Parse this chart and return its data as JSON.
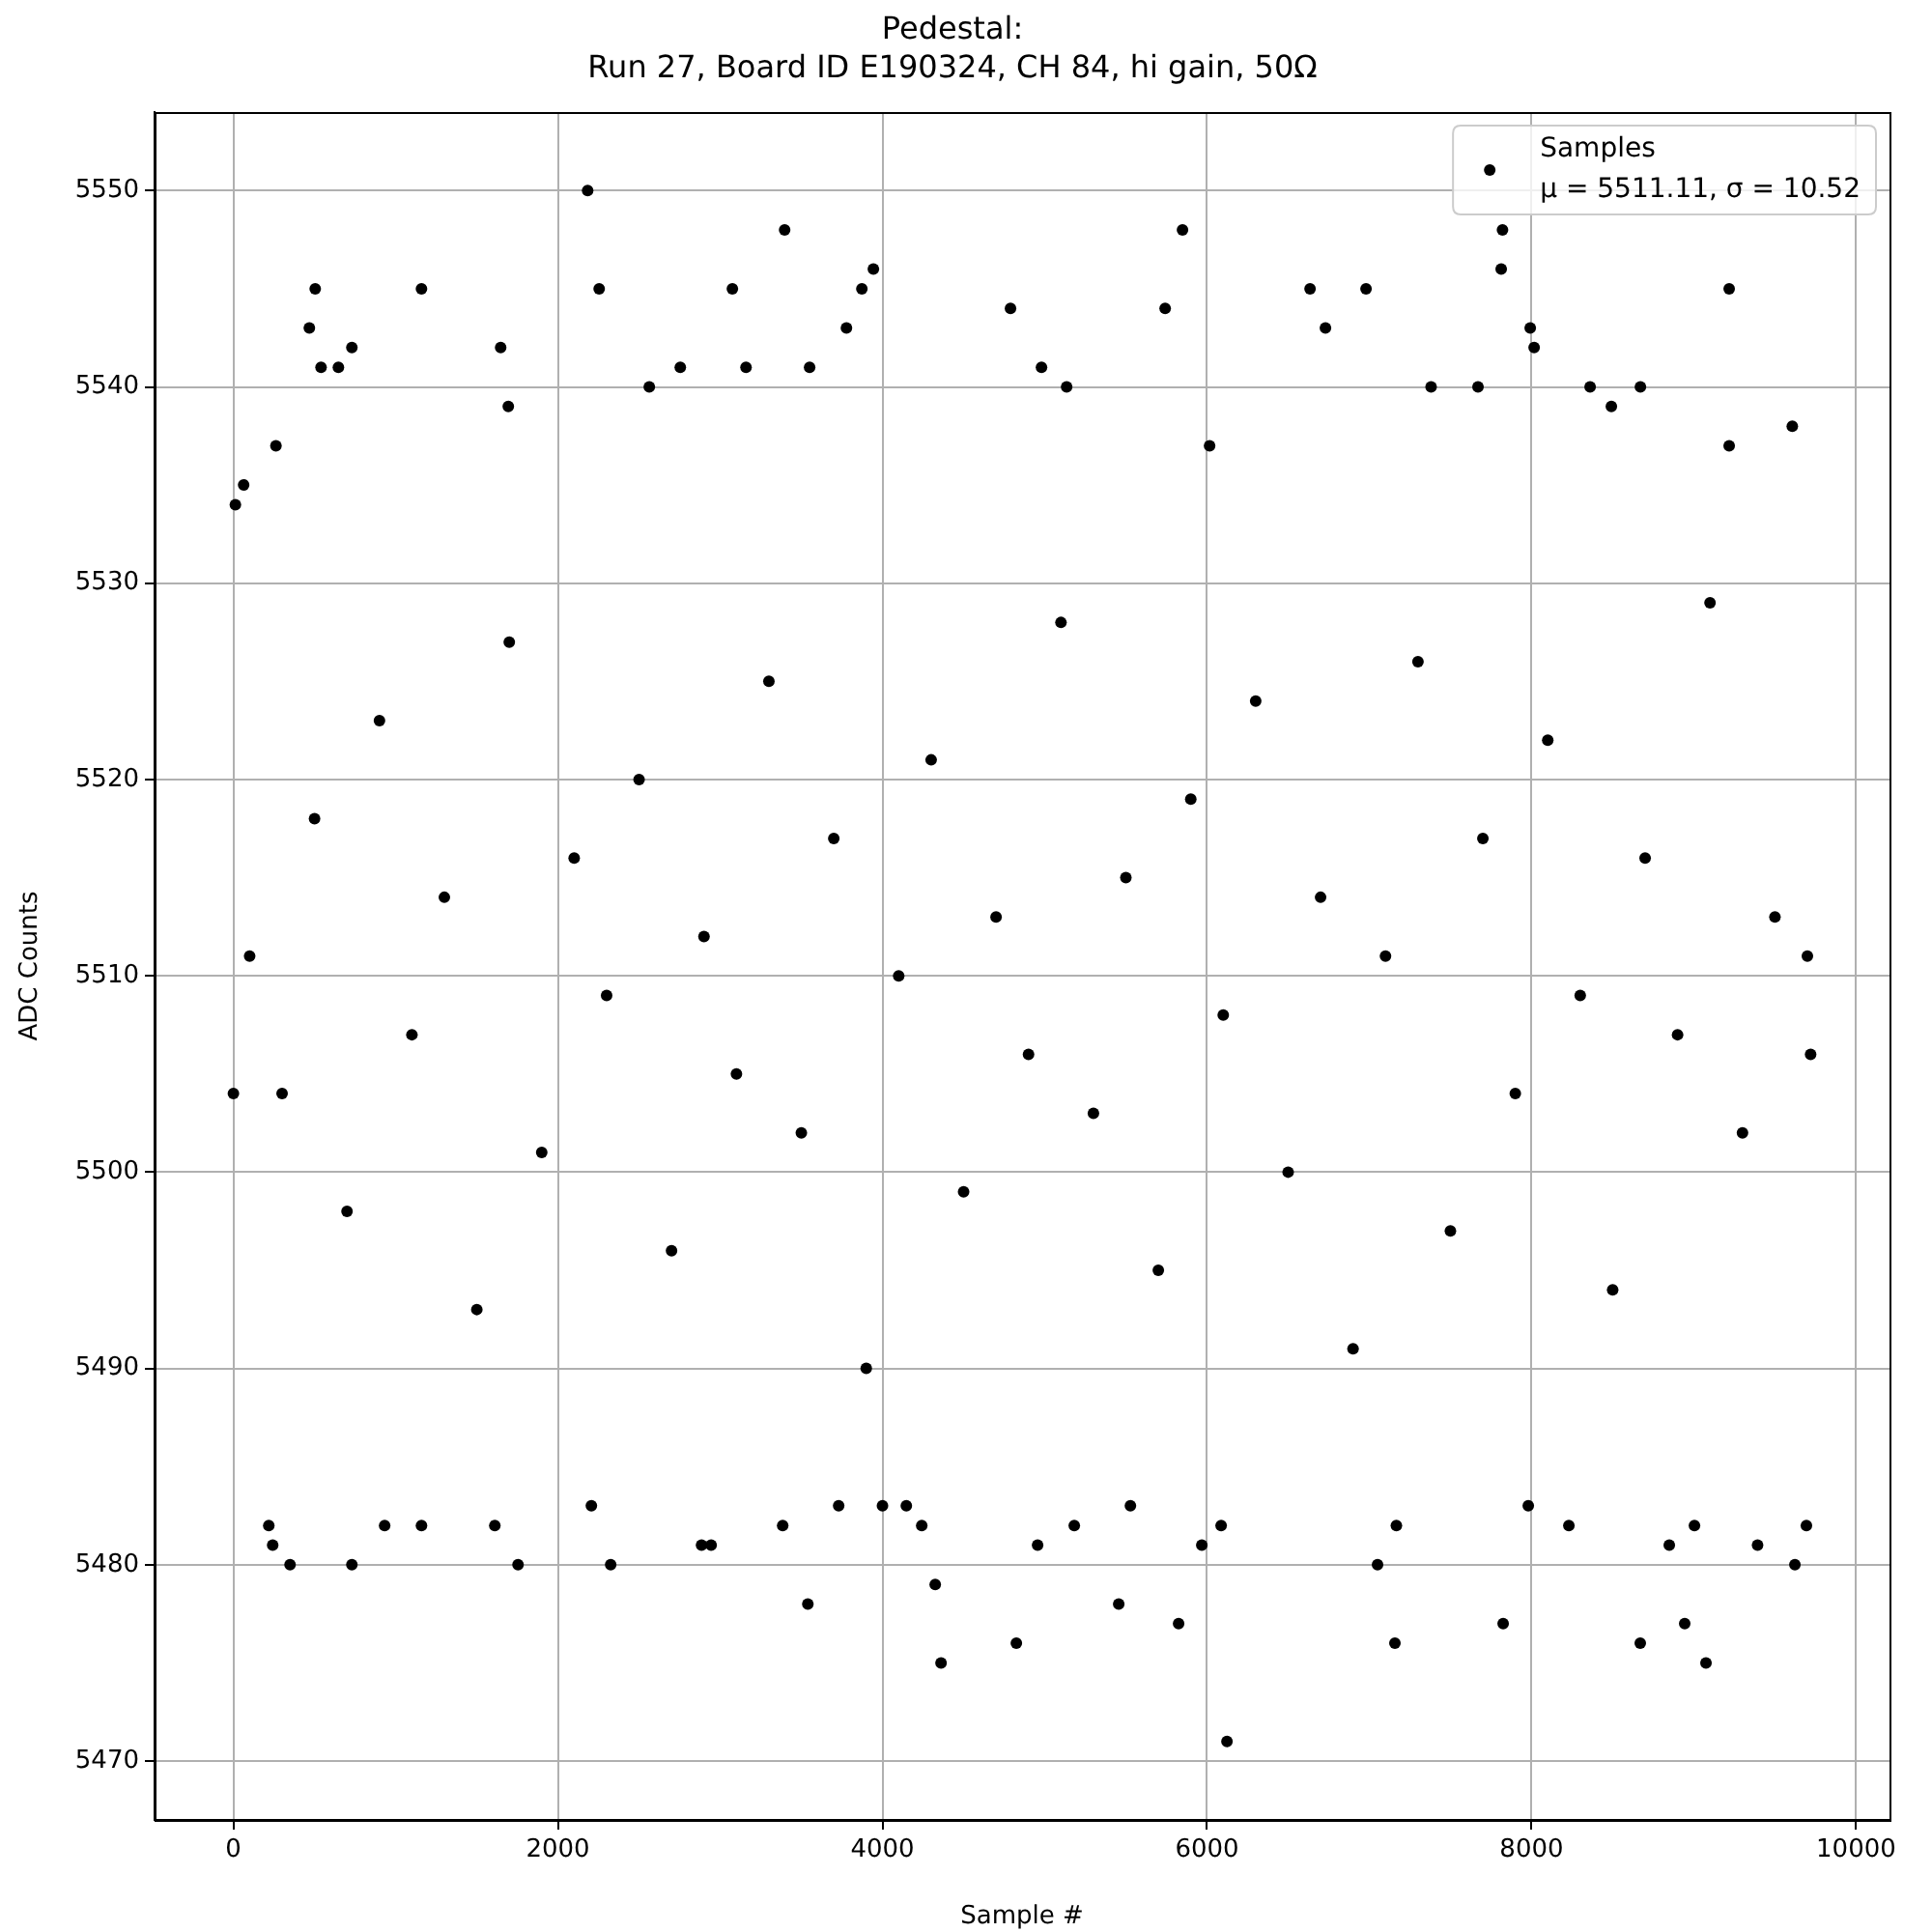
{
  "chart_data": {
    "type": "scatter",
    "title": "Pedestal:\nRun 27, Board ID E190324, CH 84, hi gain, 50Ω",
    "xlabel": "Sample #",
    "ylabel": "ADC Counts",
    "x": [
      12,
      63,
      262,
      468,
      504,
      540,
      647,
      730,
      1159,
      1647,
      1694,
      2183,
      2254,
      2563,
      2754,
      3075,
      3159,
      3397,
      3551,
      3778,
      3873,
      3944,
      4789,
      4980,
      5135,
      5742,
      5849,
      6016,
      6635,
      6730,
      6980,
      7381,
      7670,
      7813,
      7821,
      7992,
      8016,
      8361,
      8492,
      8671,
      9218,
      9218,
      9607,
      218,
      242,
      349,
      730,
      932,
      1159,
      1611,
      1754,
      2206,
      2325,
      2885,
      2944,
      3385,
      3540,
      3730,
      4000,
      4147,
      4242,
      4325,
      4361,
      4825,
      4956,
      5182,
      5456,
      5528,
      5825,
      5968,
      6087,
      6123,
      7051,
      7158,
      7167,
      7825,
      7980,
      8230,
      8670,
      8849,
      8944,
      9004,
      9075,
      9393,
      9623,
      9694,
      0,
      100,
      300,
      500,
      700,
      900,
      1100,
      1300,
      1500,
      1700,
      1900,
      2100,
      2300,
      2500,
      2700,
      2900,
      3100,
      3300,
      3500,
      3700,
      3900,
      4100,
      4300,
      4500,
      4700,
      4900,
      5100,
      5300,
      5500,
      5700,
      5900,
      6100,
      6300,
      6500,
      6700,
      6900,
      7100,
      7300,
      7500,
      7700,
      7900,
      8100,
      8300,
      8500,
      8700,
      8900,
      9100,
      9300,
      9500,
      9700,
      9720
    ],
    "series": [
      {
        "name": "Samples\nμ = 5511.11, σ = 10.52",
        "color": "#000000",
        "values": [
          5534,
          5535,
          5537,
          5543,
          5545,
          5541,
          5541,
          5542,
          5545,
          5542,
          5539,
          5550,
          5545,
          5540,
          5541,
          5545,
          5541,
          5548,
          5541,
          5543,
          5545,
          5546,
          5544,
          5541,
          5540,
          5544,
          5548,
          5537,
          5545,
          5543,
          5545,
          5540,
          5540,
          5546,
          5548,
          5543,
          5542,
          5540,
          5539,
          5540,
          5545,
          5537,
          5538,
          5482,
          5481,
          5480,
          5480,
          5482,
          5482,
          5482,
          5480,
          5483,
          5480,
          5481,
          5481,
          5482,
          5478,
          5483,
          5483,
          5483,
          5482,
          5479,
          5475,
          5476,
          5481,
          5482,
          5478,
          5483,
          5477,
          5481,
          5482,
          5471,
          5480,
          5476,
          5482,
          5477,
          5483,
          5482,
          5476,
          5481,
          5477,
          5482,
          5475,
          5481,
          5480,
          5482,
          5504,
          5511,
          5504,
          5518,
          5498,
          5523,
          5507,
          5514,
          5493,
          5527,
          5501,
          5516,
          5509,
          5520,
          5496,
          5512,
          5505,
          5525,
          5502,
          5517,
          5490,
          5510,
          5521,
          5499,
          5513,
          5506,
          5528,
          5503,
          5515,
          5495,
          5519,
          5508,
          5524,
          5500,
          5514,
          5491,
          5511,
          5526,
          5497,
          5517,
          5504,
          5522,
          5509,
          5494,
          5516,
          5507,
          5529,
          5502,
          5513,
          5511,
          5506
        ]
      }
    ],
    "xlim": [
      -486,
      10206
    ],
    "ylim": [
      5467,
      5554
    ],
    "xticks": [
      0,
      2000,
      4000,
      6000,
      8000,
      10000
    ],
    "yticks": [
      5470,
      5480,
      5490,
      5500,
      5510,
      5520,
      5530,
      5540,
      5550
    ],
    "grid": true,
    "legend": "top right",
    "marker": "circle"
  }
}
